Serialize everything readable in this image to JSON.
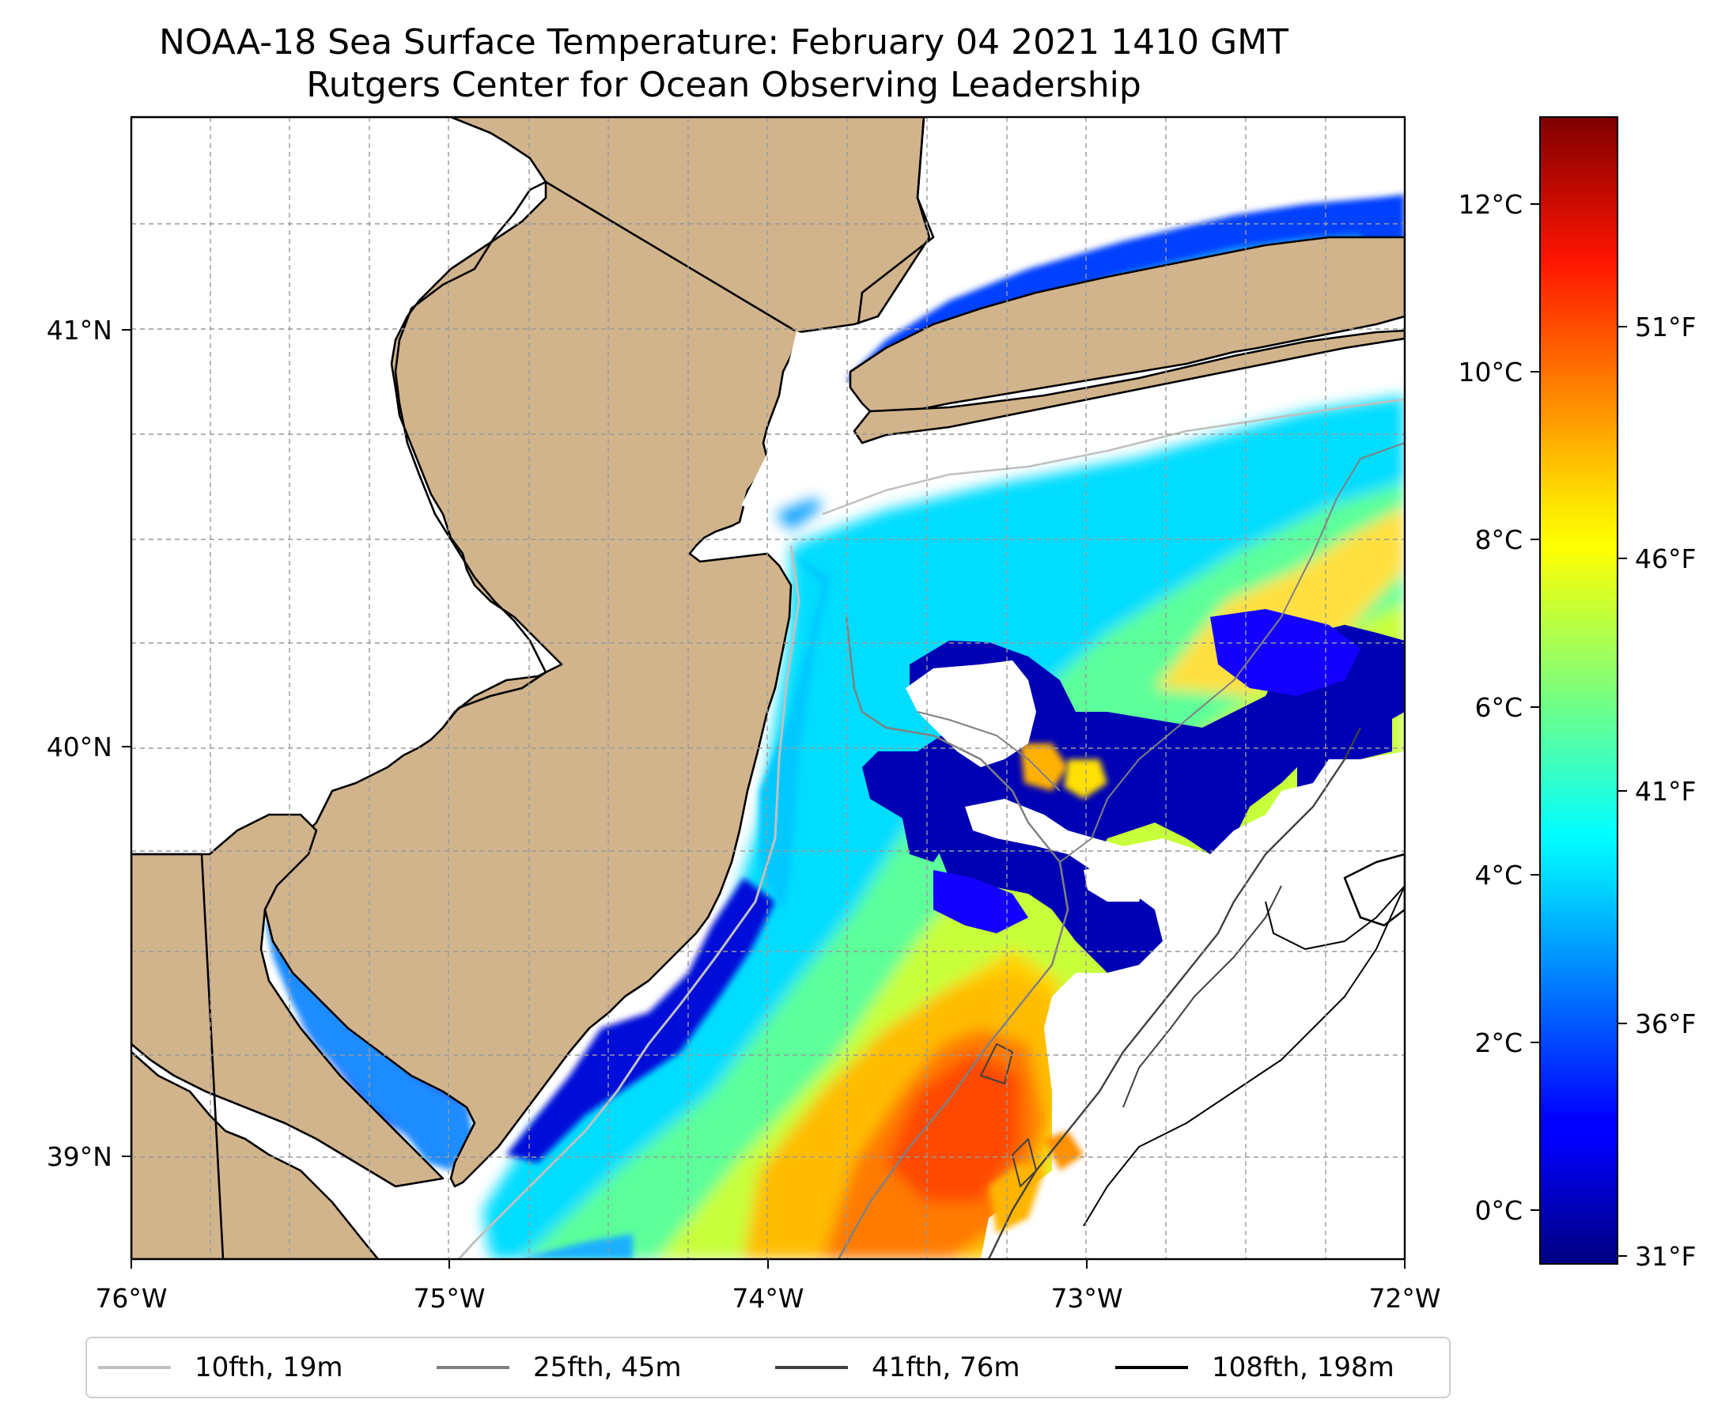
{
  "title": {
    "line1": "NOAA-18 Sea Surface Temperature: February 04 2021 1410 GMT",
    "line2": "Rutgers Center for Ocean Observing Leadership"
  },
  "map": {
    "lon_ticks": [
      "76°W",
      "75°W",
      "74°W",
      "73°W",
      "72°W"
    ],
    "lat_ticks": [
      "41°N",
      "40°N",
      "39°N"
    ],
    "extent": {
      "lon": [
        -76,
        -72
      ],
      "lat": [
        38.73,
        41.53
      ]
    },
    "land_color": "#d2b48c",
    "no_data_color": "#ffffff"
  },
  "colorbar": {
    "celsius_ticks": [
      "12°C",
      "10°C",
      "8°C",
      "6°C",
      "4°C",
      "2°C",
      "0°C"
    ],
    "fahrenheit_ticks": [
      "51°F",
      "46°F",
      "41°F",
      "36°F",
      "31°F"
    ],
    "range_c": [
      -0.6,
      13.1
    ],
    "colormap": "jet"
  },
  "legend": {
    "items": [
      {
        "label": "10fth, 19m",
        "color": "#c0c0c0"
      },
      {
        "label": "25fth, 45m",
        "color": "#808080"
      },
      {
        "label": "41fth, 76m",
        "color": "#404040"
      },
      {
        "label": "108fth, 198m",
        "color": "#000000"
      }
    ]
  }
}
